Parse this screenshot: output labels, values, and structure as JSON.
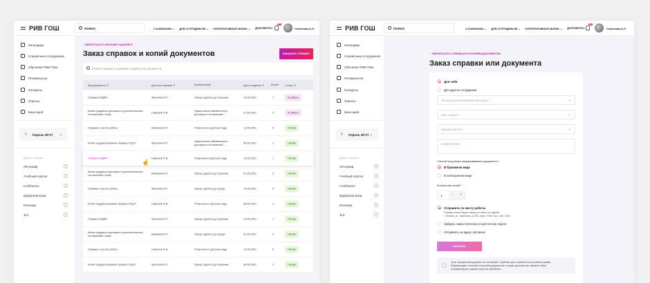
{
  "brand": {
    "logo": "РИВ ГОШ",
    "accent": "#c01ab0",
    "accent2": "#e8225a"
  },
  "header": {
    "search_placeholder": "ПОИСК",
    "nav": [
      "О КОМПАНИИ ⌄",
      "ДЛЯ СОТРУДНИКОВ ⌄",
      "КОРПОРАТИВНАЯ ЖИЗНЬ ⌄",
      "ДОКУМЕНТЫ"
    ],
    "notifications": "99+",
    "user_name": "Семенова А.Л."
  },
  "sidebar": {
    "items": [
      {
        "label": "Календарь",
        "icon": "calendar-icon"
      },
      {
        "label": "Справочник сотрудников",
        "icon": "people-icon"
      },
      {
        "label": "Обучение РИВ ГОШ",
        "icon": "education-icon"
      },
      {
        "label": "Пятиминутка",
        "icon": "clock-icon"
      },
      {
        "label": "Конкурсы",
        "icon": "award-icon"
      },
      {
        "label": "Опросы",
        "icon": "poll-icon"
      },
      {
        "label": "Банк идей",
        "icon": "bulb-icon"
      }
    ],
    "wifi_label": "Пароль Wi-Fi",
    "other_header": "Другие сервисы",
    "other": [
      "Летограф",
      "Учебный портал",
      "Confluence",
      "Буферная База",
      "Итилиум",
      "Jira"
    ]
  },
  "list_page": {
    "back": "Вернуться к личному кабинету",
    "title": "Заказ справок и копий документов",
    "order_button": "ЗАКАЗАТЬ СПРАВКУ",
    "search_placeholder": "начните вводить название справки или документа",
    "columns": [
      "Вид документа ⇕",
      "Для кого справка ⇕",
      "Комментарий",
      "Дата создания ⇕",
      "Копий",
      "Статус ⇕"
    ],
    "rows": [
      [
        "Справка 2НДФЛ",
        "Фролова И.П.",
        "Прошу сделать до вторника",
        "12.05.2021",
        "1",
        "В работе"
      ],
      [
        "Копия трудового договора и дополнительных соглашений к нему",
        "Смирнов П.В.",
        "Нужна копия обновленного договора и соглашений ...",
        "01.06.2021",
        "2",
        "В работе"
      ],
      [
        "Справка с места работы",
        "Иванова М.Л.",
        "Попросили в детском саду",
        "12.05.2021",
        "5",
        "Готово"
      ],
      [
        "Копия трудовой книжки/ справка СТД-Р",
        "Фролова И.П.",
        "Нужна копия обновленного договора и соглашений ...",
        "30.05.2021",
        "2",
        "Готово"
      ],
      [
        "Справка 2НДФЛ",
        "Смирнов П.В.",
        "Попросили в детском саду",
        "12.05.2021",
        "1",
        "Готово"
      ],
      [
        "Копия трудового договора и дополнительных соглашений к нему",
        "Иванова М.Л.",
        "Прошу сделать до вторника",
        "01.06.2021",
        "2",
        "Готово"
      ],
      [
        "Справка с места работы",
        "Фролова И.П.",
        "Прошу сделать до среды",
        "12.05.2021",
        "5",
        "Готово"
      ],
      [
        "Копия трудовой книжки/ справка СТД-Р",
        "Смирнов П.В.",
        "Попросили в детском саду",
        "30.05.2021",
        "2",
        "Готово"
      ],
      [
        "Справка 2НДФЛ",
        "Фролова И.П.",
        "Прошу сделать до вторника",
        "12.05.2021",
        "1",
        "Готово"
      ],
      [
        "Копия трудового договора и дополнительных соглашений к нему",
        "Иванова М.Л.",
        "Прошу сделать до среды",
        "01.06.2021",
        "2",
        "Готово"
      ],
      [
        "Справка с места работы",
        "Смирнов П.В.",
        "Попросили в детском саду",
        "12.05.2021",
        "5",
        "Готово"
      ],
      [
        "Копия трудовой книжки/ справка СТД-Р",
        "Фролова И.П.",
        "Прошу сделать до вторника",
        "30.05.2021",
        "2",
        "Готово"
      ]
    ],
    "hovered_row": 4
  },
  "form_page": {
    "back": "Вернуться к справкам и копиям документов",
    "title": "Заказ справки или документа",
    "for_self": "Для себя",
    "for_other": "Для другого сотрудника",
    "org_placeholder": "ОРГАНИЗАЦИЯ (ЮРИДИЧЕСКОЕ ЛИЦО) *",
    "purpose_placeholder": "ЦЕЛЬ ЗАКАЗА *",
    "doctype_placeholder": "ВИД ДОКУМЕНТА *",
    "comment_placeholder": "КОММЕНТАРИЙ",
    "method_label": "Способ получения запрашиваемого документа *",
    "paper": "В бумажном виде",
    "electronic": "В электронном виде",
    "copies_label": "Количество копий *",
    "copies_value": "1",
    "minus": "−",
    "plus": "+",
    "send_work": "Отправить по месту работы",
    "send_work_hint1": "Справку можно будет забрать в офисе по адресу",
    "send_work_hint2": "г. Москва, ул. Заречная, д. 283, офис «Рив Гош», каб. 2003",
    "pickup": "Забрать самостоятельно в расчетном отделе",
    "send_home": "Отправить на адрес прописки",
    "submit": "ЗАКАЗАТЬ",
    "info1": "Срок оформления документов составляет 3 рабочих дня с момента поступления заявки.",
    "info2": "Информацию о способе получения документов и сроках доставки вы сможете найти",
    "info3": "в комментарии к заявке после её обработки."
  }
}
